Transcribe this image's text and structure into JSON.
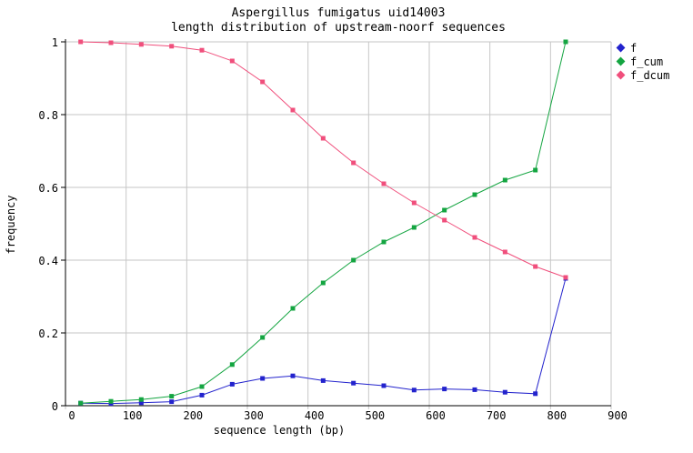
{
  "figure": {
    "background": "#ffffff",
    "grid_color": "#c6c6c6",
    "axis_color": "#000000",
    "text_color": "#000000"
  },
  "chart_data": {
    "type": "line",
    "title": "Aspergillus fumigatus uid14003",
    "subtitle": "length distribution of upstream-noorf sequences",
    "xlabel": "sequence length (bp)",
    "ylabel": "frequency",
    "xlim": [
      0,
      900
    ],
    "ylim": [
      0,
      1
    ],
    "xticks": [
      0,
      100,
      200,
      300,
      400,
      500,
      600,
      700,
      800,
      900
    ],
    "yticks": [
      0,
      0.2,
      0.4,
      0.6,
      0.8,
      1
    ],
    "ytick_labels": [
      "0",
      "0.2",
      "0.4",
      "0.6",
      "0.8",
      "1"
    ],
    "grid": true,
    "legend_position": "top-right-outside",
    "marker": "square",
    "x": [
      25,
      75,
      125,
      175,
      225,
      275,
      325,
      375,
      425,
      475,
      525,
      575,
      625,
      675,
      725,
      775,
      825
    ],
    "series": [
      {
        "name": "f",
        "color": "#2323cd",
        "values": [
          0.007,
          0.006,
          0.008,
          0.011,
          0.029,
          0.059,
          0.075,
          0.082,
          0.069,
          0.062,
          0.055,
          0.043,
          0.046,
          0.044,
          0.037,
          0.033,
          0.35
        ]
      },
      {
        "name": "f_cum",
        "color": "#14a541",
        "values": [
          0.007,
          0.012,
          0.017,
          0.026,
          0.0525,
          0.113,
          0.1875,
          0.2675,
          0.3375,
          0.4,
          0.45,
          0.49,
          0.5375,
          0.58,
          0.62,
          0.6475,
          1.0
        ]
      },
      {
        "name": "f_dcum",
        "color": "#f04f7c",
        "values": [
          1.0,
          0.9975,
          0.993,
          0.988,
          0.977,
          0.9475,
          0.89,
          0.8125,
          0.735,
          0.6675,
          0.61,
          0.5575,
          0.51,
          0.4625,
          0.4225,
          0.3825,
          0.3525
        ]
      }
    ]
  }
}
